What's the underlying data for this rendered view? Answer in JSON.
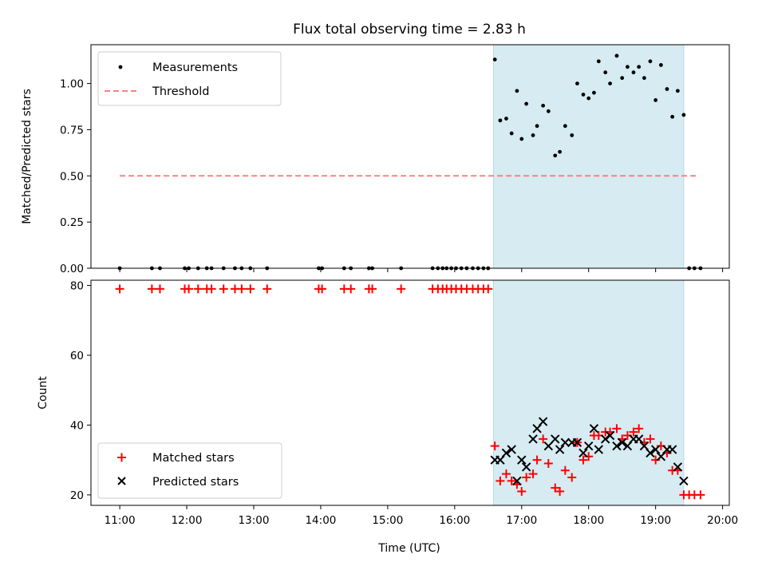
{
  "chart_data": {
    "title": "Flux total observing time = 2.83 h",
    "xlabel": "Time (UTC)",
    "xlim": [
      10.57,
      20.1
    ],
    "xticks": [
      "11:00",
      "12:00",
      "13:00",
      "14:00",
      "15:00",
      "16:00",
      "17:00",
      "18:00",
      "19:00",
      "20:00"
    ],
    "shaded_interval": [
      16.58,
      19.42
    ],
    "panels": [
      {
        "type": "scatter",
        "ylabel": "Matched/Predicted stars",
        "ylim": [
          0,
          1.21
        ],
        "yticks": [
          "0.00",
          "0.25",
          "0.50",
          "0.75",
          "1.00"
        ],
        "legend_position": "upper-left",
        "series": [
          {
            "name": "Measurements",
            "color": "#000000",
            "marker": "dot",
            "points": [
              [
                11.0,
                0
              ],
              [
                11.48,
                0
              ],
              [
                11.6,
                0
              ],
              [
                11.97,
                0
              ],
              [
                12.03,
                0
              ],
              [
                12.17,
                0
              ],
              [
                12.3,
                0
              ],
              [
                12.37,
                0
              ],
              [
                12.55,
                0
              ],
              [
                12.72,
                0
              ],
              [
                12.82,
                0
              ],
              [
                12.95,
                0
              ],
              [
                13.2,
                0
              ],
              [
                13.97,
                0
              ],
              [
                14.02,
                0
              ],
              [
                14.35,
                0
              ],
              [
                14.45,
                0
              ],
              [
                14.72,
                0
              ],
              [
                14.77,
                0
              ],
              [
                15.2,
                0
              ],
              [
                15.67,
                0
              ],
              [
                15.75,
                0
              ],
              [
                15.82,
                0
              ],
              [
                15.88,
                0
              ],
              [
                15.95,
                0
              ],
              [
                16.02,
                0
              ],
              [
                16.1,
                0
              ],
              [
                16.18,
                0
              ],
              [
                16.27,
                0
              ],
              [
                16.35,
                0
              ],
              [
                16.43,
                0
              ],
              [
                16.5,
                0
              ],
              [
                16.6,
                1.13
              ],
              [
                16.68,
                0.8
              ],
              [
                16.77,
                0.81
              ],
              [
                16.85,
                0.73
              ],
              [
                16.93,
                0.96
              ],
              [
                17.0,
                0.7
              ],
              [
                17.07,
                0.89
              ],
              [
                17.17,
                0.72
              ],
              [
                17.23,
                0.77
              ],
              [
                17.32,
                0.88
              ],
              [
                17.4,
                0.85
              ],
              [
                17.5,
                0.61
              ],
              [
                17.57,
                0.63
              ],
              [
                17.65,
                0.77
              ],
              [
                17.75,
                0.72
              ],
              [
                17.83,
                1.0
              ],
              [
                17.92,
                0.94
              ],
              [
                18.0,
                0.92
              ],
              [
                18.08,
                0.95
              ],
              [
                18.15,
                1.12
              ],
              [
                18.25,
                1.06
              ],
              [
                18.32,
                1.0
              ],
              [
                18.42,
                1.15
              ],
              [
                18.5,
                1.03
              ],
              [
                18.58,
                1.09
              ],
              [
                18.67,
                1.06
              ],
              [
                18.75,
                1.09
              ],
              [
                18.83,
                1.03
              ],
              [
                18.92,
                1.12
              ],
              [
                19.0,
                0.91
              ],
              [
                19.08,
                1.1
              ],
              [
                19.17,
                0.97
              ],
              [
                19.25,
                0.82
              ],
              [
                19.33,
                0.96
              ],
              [
                19.42,
                0.83
              ],
              [
                19.5,
                0
              ],
              [
                19.58,
                0
              ],
              [
                19.67,
                0
              ]
            ]
          },
          {
            "name": "Threshold",
            "color": "#ff7f7f",
            "line_style": "dashed",
            "points": [
              [
                11.0,
                0.5
              ],
              [
                19.6,
                0.5
              ]
            ]
          }
        ]
      },
      {
        "type": "scatter",
        "ylabel": "Count",
        "ylim": [
          17,
          81.5
        ],
        "yticks": [
          "20",
          "40",
          "60",
          "80"
        ],
        "legend_position": "lower-left",
        "series": [
          {
            "name": "Matched stars",
            "color": "#ff0000",
            "marker": "plus",
            "points": [
              [
                11.0,
                79
              ],
              [
                11.48,
                79
              ],
              [
                11.6,
                79
              ],
              [
                11.97,
                79
              ],
              [
                12.03,
                79
              ],
              [
                12.17,
                79
              ],
              [
                12.3,
                79
              ],
              [
                12.37,
                79
              ],
              [
                12.55,
                79
              ],
              [
                12.72,
                79
              ],
              [
                12.82,
                79
              ],
              [
                12.95,
                79
              ],
              [
                13.2,
                79
              ],
              [
                13.97,
                79
              ],
              [
                14.02,
                79
              ],
              [
                14.35,
                79
              ],
              [
                14.45,
                79
              ],
              [
                14.72,
                79
              ],
              [
                14.77,
                79
              ],
              [
                15.2,
                79
              ],
              [
                15.67,
                79
              ],
              [
                15.75,
                79
              ],
              [
                15.82,
                79
              ],
              [
                15.88,
                79
              ],
              [
                15.95,
                79
              ],
              [
                16.02,
                79
              ],
              [
                16.1,
                79
              ],
              [
                16.18,
                79
              ],
              [
                16.27,
                79
              ],
              [
                16.35,
                79
              ],
              [
                16.43,
                79
              ],
              [
                16.5,
                79
              ],
              [
                16.6,
                34
              ],
              [
                16.68,
                24
              ],
              [
                16.77,
                26
              ],
              [
                16.85,
                24
              ],
              [
                16.93,
                23
              ],
              [
                17.0,
                21
              ],
              [
                17.07,
                25
              ],
              [
                17.17,
                26
              ],
              [
                17.23,
                30
              ],
              [
                17.32,
                36
              ],
              [
                17.4,
                29
              ],
              [
                17.5,
                22
              ],
              [
                17.57,
                21
              ],
              [
                17.65,
                27
              ],
              [
                17.75,
                25
              ],
              [
                17.83,
                35
              ],
              [
                17.92,
                30
              ],
              [
                18.0,
                31
              ],
              [
                18.08,
                37
              ],
              [
                18.15,
                37
              ],
              [
                18.25,
                38
              ],
              [
                18.32,
                38
              ],
              [
                18.42,
                39
              ],
              [
                18.5,
                36
              ],
              [
                18.58,
                37
              ],
              [
                18.67,
                38
              ],
              [
                18.75,
                39
              ],
              [
                18.83,
                35
              ],
              [
                18.92,
                36
              ],
              [
                19.0,
                30
              ],
              [
                19.08,
                34
              ],
              [
                19.17,
                32
              ],
              [
                19.25,
                27
              ],
              [
                19.33,
                27
              ],
              [
                19.42,
                20
              ],
              [
                19.5,
                20
              ],
              [
                19.58,
                20
              ],
              [
                19.67,
                20
              ]
            ]
          },
          {
            "name": "Predicted stars",
            "color": "#000000",
            "marker": "x",
            "points": [
              [
                16.6,
                30
              ],
              [
                16.68,
                30
              ],
              [
                16.77,
                32
              ],
              [
                16.85,
                33
              ],
              [
                16.93,
                24
              ],
              [
                17.0,
                30
              ],
              [
                17.07,
                28
              ],
              [
                17.17,
                36
              ],
              [
                17.23,
                39
              ],
              [
                17.32,
                41
              ],
              [
                17.4,
                34
              ],
              [
                17.5,
                36
              ],
              [
                17.57,
                33
              ],
              [
                17.65,
                35
              ],
              [
                17.75,
                35
              ],
              [
                17.83,
                35
              ],
              [
                17.92,
                32
              ],
              [
                18.0,
                34
              ],
              [
                18.08,
                39
              ],
              [
                18.15,
                33
              ],
              [
                18.25,
                36
              ],
              [
                18.32,
                37
              ],
              [
                18.42,
                34
              ],
              [
                18.5,
                35
              ],
              [
                18.58,
                34
              ],
              [
                18.67,
                36
              ],
              [
                18.75,
                36
              ],
              [
                18.83,
                34
              ],
              [
                18.92,
                32
              ],
              [
                19.0,
                33
              ],
              [
                19.08,
                31
              ],
              [
                19.17,
                33
              ],
              [
                19.25,
                33
              ],
              [
                19.33,
                28
              ],
              [
                19.42,
                24
              ]
            ]
          }
        ]
      }
    ]
  }
}
